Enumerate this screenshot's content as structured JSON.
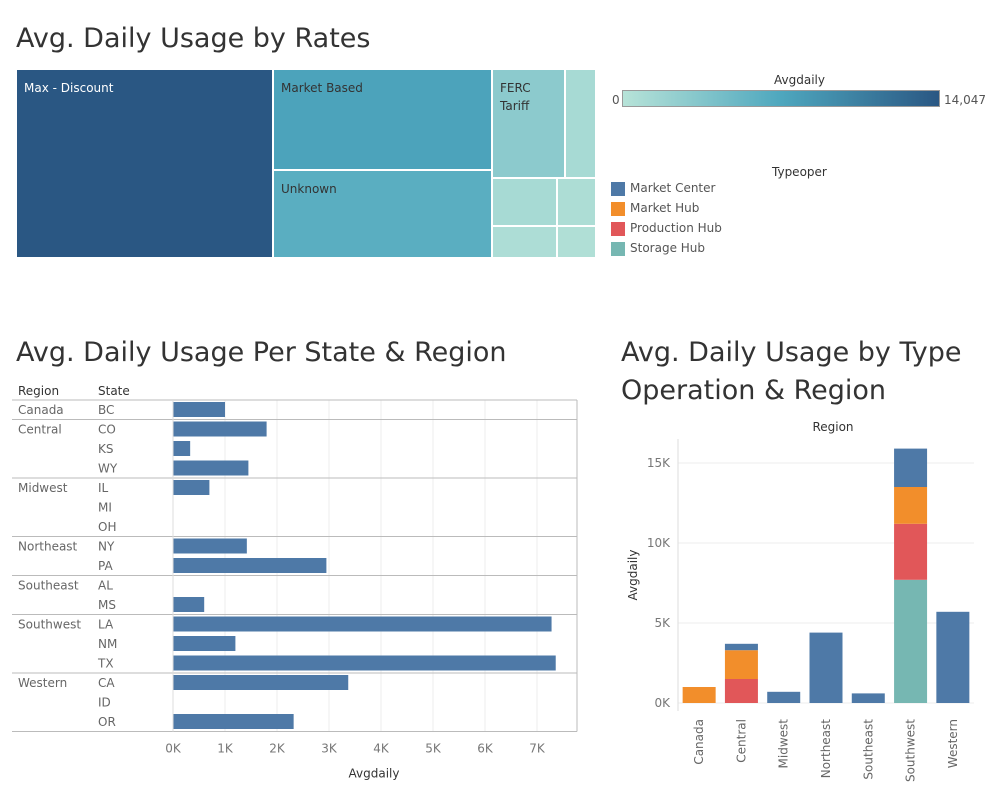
{
  "treemap": {
    "title": "Avg. Daily Usage by Rates",
    "cells": [
      {
        "label": "Max - Discount",
        "value": 14047
      },
      {
        "label": "Market Based",
        "value": 7400
      },
      {
        "label": "Unknown",
        "value": 6200
      },
      {
        "label": "FERC Tariff",
        "value": 2900
      },
      {
        "label": "",
        "value": 1100
      },
      {
        "label": "",
        "value": 1100
      },
      {
        "label": "",
        "value": 700
      },
      {
        "label": "",
        "value": 650
      },
      {
        "label": "",
        "value": 500
      }
    ]
  },
  "color_legend": {
    "title": "Avgdaily",
    "min_label": "0",
    "max_label": "14,047",
    "min_color": "#b7e3d8",
    "mid_color": "#4ea7be",
    "max_color": "#2a5783"
  },
  "type_legend": {
    "title": "Typeoper",
    "items": [
      {
        "label": "Market Center",
        "color": "#4e79a7"
      },
      {
        "label": "Market Hub",
        "color": "#f28e2b"
      },
      {
        "label": "Production Hub",
        "color": "#e15759"
      },
      {
        "label": "Storage Hub",
        "color": "#76b7b2"
      }
    ]
  },
  "state_chart": {
    "title": "Avg. Daily Usage Per State & Region",
    "col_region": "Region",
    "col_state": "State",
    "xlabel": "Avgdaily"
  },
  "type_chart": {
    "title_line1": "Avg. Daily Usage by Type",
    "title_line2": "Operation & Region",
    "header": "Region",
    "ylabel": "Avgdaily"
  },
  "chart_data": [
    {
      "type": "bar",
      "orientation": "horizontal",
      "title": "Avg. Daily Usage Per State & Region",
      "xlabel": "Avgdaily",
      "xlim": [
        0,
        7500
      ],
      "xticks": [
        "0K",
        "1K",
        "2K",
        "3K",
        "4K",
        "5K",
        "6K",
        "7K"
      ],
      "groups": [
        {
          "region": "Canada",
          "states": [
            {
              "state": "BC",
              "value": 1000
            }
          ]
        },
        {
          "region": "Central",
          "states": [
            {
              "state": "CO",
              "value": 1800
            },
            {
              "state": "KS",
              "value": 330
            },
            {
              "state": "WY",
              "value": 1450
            }
          ]
        },
        {
          "region": "Midwest",
          "states": [
            {
              "state": "IL",
              "value": 700
            },
            {
              "state": "MI",
              "value": 0
            },
            {
              "state": "OH",
              "value": 0
            }
          ]
        },
        {
          "region": "Northeast",
          "states": [
            {
              "state": "NY",
              "value": 1420
            },
            {
              "state": "PA",
              "value": 2950
            }
          ]
        },
        {
          "region": "Southeast",
          "states": [
            {
              "state": "AL",
              "value": 0
            },
            {
              "state": "MS",
              "value": 600
            }
          ]
        },
        {
          "region": "Southwest",
          "states": [
            {
              "state": "LA",
              "value": 7280
            },
            {
              "state": "NM",
              "value": 1200
            },
            {
              "state": "TX",
              "value": 7360
            }
          ]
        },
        {
          "region": "Western",
          "states": [
            {
              "state": "CA",
              "value": 3370
            },
            {
              "state": "ID",
              "value": 0
            },
            {
              "state": "OR",
              "value": 2320
            }
          ]
        }
      ]
    },
    {
      "type": "bar",
      "stacked": true,
      "title": "Avg. Daily Usage by Type Operation & Region",
      "xlabel": "Region",
      "ylabel": "Avgdaily",
      "ylim": [
        -500,
        16500
      ],
      "yticks": [
        {
          "v": 0,
          "label": "0K"
        },
        {
          "v": 5000,
          "label": "5K"
        },
        {
          "v": 10000,
          "label": "10K"
        },
        {
          "v": 15000,
          "label": "15K"
        }
      ],
      "categories": [
        "Canada",
        "Central",
        "Midwest",
        "Northeast",
        "Southeast",
        "Southwest",
        "Western"
      ],
      "series": [
        {
          "name": "Storage Hub",
          "values": [
            0,
            0,
            0,
            0,
            0,
            7700,
            0
          ]
        },
        {
          "name": "Production Hub",
          "values": [
            0,
            1500,
            0,
            0,
            0,
            3500,
            0
          ]
        },
        {
          "name": "Market Hub",
          "values": [
            1000,
            1800,
            0,
            0,
            0,
            2300,
            0
          ]
        },
        {
          "name": "Market Center",
          "values": [
            0,
            400,
            700,
            4400,
            600,
            2400,
            5700
          ]
        }
      ]
    }
  ]
}
